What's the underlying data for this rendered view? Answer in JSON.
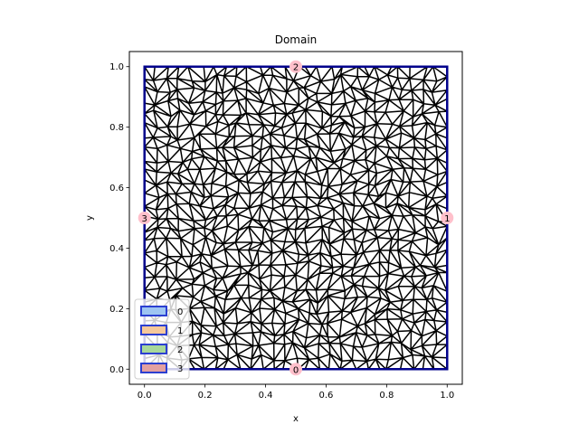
{
  "chart_data": {
    "type": "mesh",
    "title": "Domain",
    "xlabel": "x",
    "ylabel": "y",
    "xlim": [
      -0.05,
      1.05
    ],
    "ylim": [
      -0.05,
      1.05
    ],
    "xticks": [
      "0.0",
      "0.2",
      "0.4",
      "0.6",
      "0.8",
      "1.0"
    ],
    "yticks": [
      "0.0",
      "0.2",
      "0.4",
      "0.6",
      "0.8",
      "1.0"
    ],
    "xtick_values": [
      0.0,
      0.2,
      0.4,
      0.6,
      0.8,
      1.0
    ],
    "ytick_values": [
      0.0,
      0.2,
      0.4,
      0.6,
      0.8,
      1.0
    ],
    "domain": {
      "x": [
        0,
        1
      ],
      "y": [
        0,
        1
      ]
    },
    "mesh_color": "#000000",
    "boundary_color": "#00008b",
    "boundary_markers": [
      {
        "label": "0",
        "x": 0.5,
        "y": 0.0,
        "color": "#ffc0cb"
      },
      {
        "label": "1",
        "x": 1.0,
        "y": 0.5,
        "color": "#ffc0cb"
      },
      {
        "label": "2",
        "x": 0.5,
        "y": 1.0,
        "color": "#ffc0cb"
      },
      {
        "label": "3",
        "x": 0.0,
        "y": 0.5,
        "color": "#ffc0cb"
      }
    ],
    "legend": {
      "placement": "lower-left",
      "entries": [
        {
          "label": "0",
          "color": "#9ec5f2",
          "edge": "#2b3fd1"
        },
        {
          "label": "1",
          "color": "#f5c89a",
          "edge": "#2b3fd1"
        },
        {
          "label": "2",
          "color": "#a8d89b",
          "edge": "#2b3fd1"
        },
        {
          "label": "3",
          "color": "#e3a0a0",
          "edge": "#2b3fd1"
        }
      ]
    }
  }
}
